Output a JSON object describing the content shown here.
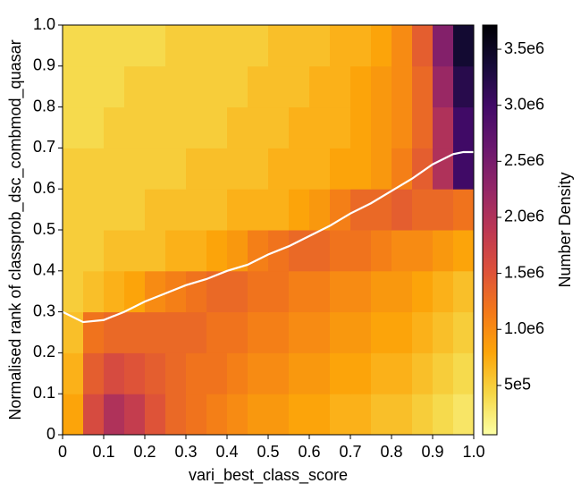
{
  "chart_data": {
    "type": "heatmap",
    "xlabel": "vari_best_class_score",
    "ylabel": "Normalised rank of classprob_dsc_combmod_quasar",
    "colorbar_label": "Number Density",
    "colormap": "inferno_r",
    "xlim": [
      0,
      1
    ],
    "ylim": [
      0,
      1
    ],
    "xticks": [
      0,
      0.1,
      0.2,
      0.3,
      0.4,
      0.5,
      0.6,
      0.7,
      0.8,
      0.9,
      {
        "value": 1,
        "label": "1.0"
      }
    ],
    "yticks": [
      0,
      0.1,
      0.2,
      0.3,
      0.4,
      0.5,
      0.6,
      0.7,
      0.8,
      0.9,
      {
        "value": 1,
        "label": "1.0"
      }
    ],
    "clim": [
      60000,
      3716000
    ],
    "cticks": [
      {
        "value": 500000,
        "label": "5e5"
      },
      {
        "value": 1000000,
        "label": "1.0e6"
      },
      {
        "value": 1500000,
        "label": "1.5e6"
      },
      {
        "value": 2000000,
        "label": "2.0e6"
      },
      {
        "value": 2500000,
        "label": "2.5e6"
      },
      {
        "value": 3000000,
        "label": "3.0e6"
      },
      {
        "value": 3500000,
        "label": "3.5e6"
      }
    ],
    "x_bins": [
      0,
      0.05,
      0.1,
      0.15,
      0.2,
      0.25,
      0.3,
      0.35,
      0.4,
      0.45,
      0.5,
      0.55,
      0.6,
      0.65,
      0.7,
      0.75,
      0.8,
      0.85,
      0.9,
      0.95,
      1
    ],
    "y_bins": [
      0,
      0.1,
      0.2,
      0.3,
      0.4,
      0.5,
      0.6,
      0.7,
      0.8,
      0.9,
      1
    ],
    "z": [
      [
        800000,
        1600000,
        2000000,
        1800000,
        1500000,
        1300000,
        1200000,
        1100000,
        1000000,
        900000,
        900000,
        800000,
        800000,
        700000,
        700000,
        600000,
        600000,
        500000,
        400000,
        300000
      ],
      [
        700000,
        1400000,
        1600000,
        1500000,
        1400000,
        1300000,
        1200000,
        1200000,
        1100000,
        1000000,
        1000000,
        900000,
        900000,
        800000,
        800000,
        700000,
        700000,
        600000,
        500000,
        400000
      ],
      [
        600000,
        1200000,
        1300000,
        1300000,
        1300000,
        1300000,
        1300000,
        1200000,
        1200000,
        1100000,
        1100000,
        1000000,
        1000000,
        900000,
        900000,
        800000,
        800000,
        700000,
        600000,
        500000
      ],
      [
        500000,
        600000,
        700000,
        800000,
        1000000,
        1100000,
        1200000,
        1300000,
        1300000,
        1200000,
        1200000,
        1100000,
        1100000,
        1000000,
        1000000,
        900000,
        900000,
        800000,
        700000,
        600000
      ],
      [
        500000,
        500000,
        600000,
        600000,
        600000,
        700000,
        700000,
        800000,
        900000,
        1100000,
        1200000,
        1300000,
        1300000,
        1200000,
        1200000,
        1100000,
        1000000,
        1000000,
        900000,
        800000
      ],
      [
        500000,
        500000,
        500000,
        500000,
        600000,
        600000,
        600000,
        600000,
        700000,
        700000,
        700000,
        800000,
        900000,
        1100000,
        1300000,
        1300000,
        1400000,
        1300000,
        1300000,
        1200000
      ],
      [
        500000,
        500000,
        500000,
        500000,
        500000,
        500000,
        600000,
        600000,
        600000,
        600000,
        700000,
        700000,
        700000,
        800000,
        800000,
        900000,
        1100000,
        1400000,
        2000000,
        3000000
      ],
      [
        400000,
        400000,
        500000,
        500000,
        500000,
        500000,
        500000,
        500000,
        600000,
        600000,
        600000,
        700000,
        700000,
        700000,
        800000,
        900000,
        1000000,
        1300000,
        2000000,
        3000000
      ],
      [
        400000,
        400000,
        400000,
        500000,
        500000,
        500000,
        500000,
        500000,
        500000,
        600000,
        600000,
        600000,
        700000,
        700000,
        800000,
        900000,
        1000000,
        1300000,
        2200000,
        3200000
      ],
      [
        400000,
        400000,
        400000,
        400000,
        400000,
        500000,
        500000,
        500000,
        500000,
        500000,
        600000,
        600000,
        600000,
        700000,
        700000,
        800000,
        1000000,
        1400000,
        2400000,
        3400000
      ]
    ],
    "line": {
      "color": "#ffffff",
      "x": [
        0,
        0.05,
        0.1,
        0.15,
        0.2,
        0.25,
        0.3,
        0.35,
        0.4,
        0.45,
        0.5,
        0.55,
        0.6,
        0.65,
        0.7,
        0.75,
        0.8,
        0.85,
        0.9,
        0.95,
        0.975,
        1
      ],
      "y": [
        0.3,
        0.275,
        0.28,
        0.3,
        0.325,
        0.345,
        0.365,
        0.38,
        0.4,
        0.415,
        0.44,
        0.46,
        0.485,
        0.51,
        0.54,
        0.565,
        0.595,
        0.625,
        0.66,
        0.685,
        0.69,
        0.69
      ]
    }
  }
}
